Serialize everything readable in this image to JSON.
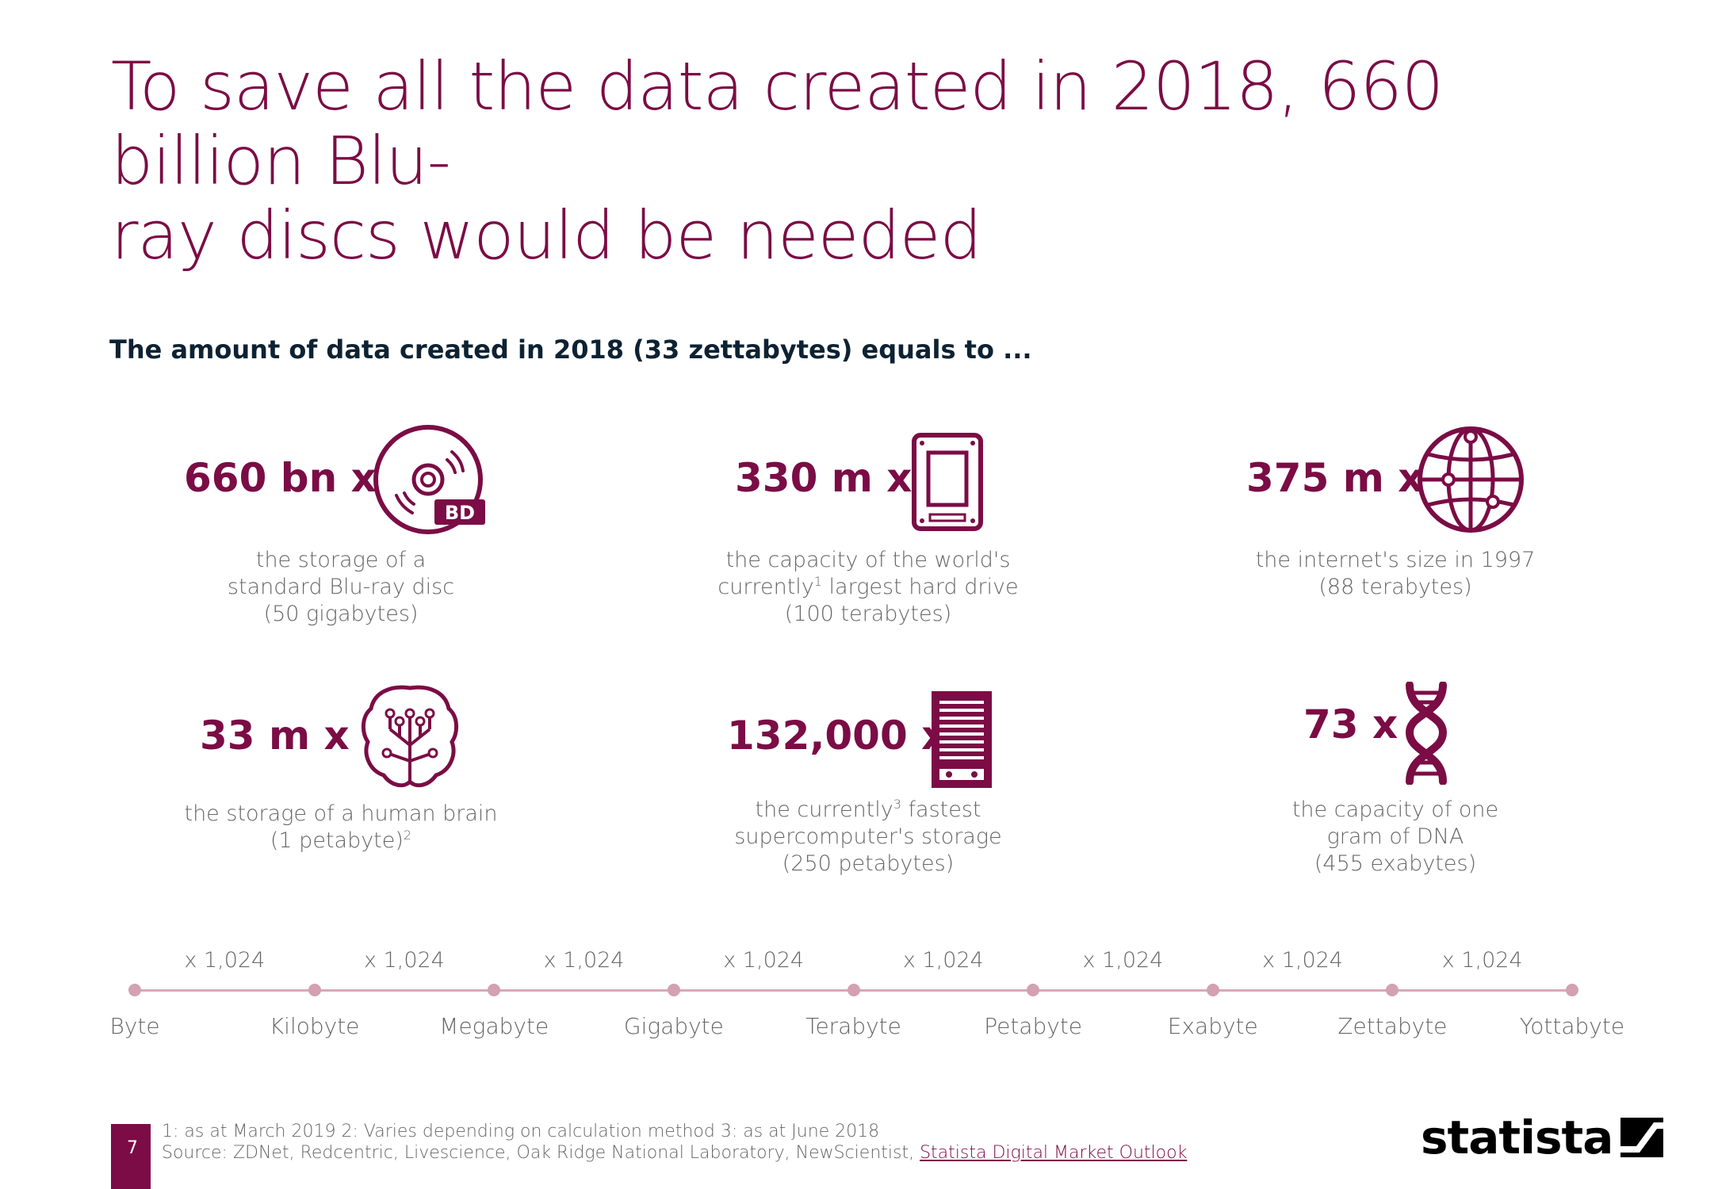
{
  "title": {
    "line1": "To save all the data created in 2018, 660 billion Blu-",
    "line2": "ray discs would be needed"
  },
  "subtitle": "The amount of data created in 2018 (33 zettabytes) equals to ...",
  "stats": [
    {
      "value": "660 bn x",
      "icon": "bluray-disc-icon",
      "icon_label": "BD",
      "desc": [
        "the storage of a",
        "standard Blu-ray disc",
        "(50 gigabytes)"
      ]
    },
    {
      "value": "330 m x",
      "icon": "hard-drive-icon",
      "desc": [
        "the capacity of the world's",
        "currently",
        "1",
        " largest hard drive",
        "(100 terabytes)"
      ]
    },
    {
      "value": "375 m x",
      "icon": "globe-network-icon",
      "desc": [
        "the internet's size in 1997",
        "(88 terabytes)"
      ]
    },
    {
      "value": "33 m x",
      "icon": "brain-icon",
      "desc": [
        "the storage of a human brain",
        "(1 petabyte)",
        "2"
      ]
    },
    {
      "value": "132,000 x",
      "icon": "server-icon",
      "desc": [
        "the currently",
        "3",
        " fastest",
        "supercomputer's storage",
        "(250 petabytes)"
      ]
    },
    {
      "value": "73 x",
      "icon": "dna-icon",
      "desc": [
        "the capacity of one",
        "gram of DNA",
        "(455 exabytes)"
      ]
    }
  ],
  "timeline": {
    "units": [
      "Byte",
      "Kilobyte",
      "Megabyte",
      "Gigabyte",
      "Terabyte",
      "Petabyte",
      "Exabyte",
      "Zettabyte",
      "Yottabyte"
    ],
    "multiplier": "x 1,024"
  },
  "footer": {
    "page": "7",
    "notes": "1: as at March 2019 2: Varies depending on calculation method 3: as at June 2018",
    "source_prefix": "Source: ZDNet, Redcentric, Livescience, Oak Ridge National Laboratory, NewScientist, ",
    "source_link": "Statista Digital Market Outlook"
  },
  "logo": "statista",
  "colors": {
    "accent": "#7b0c45",
    "timeline": "#d3a1b2",
    "text": "#666666"
  }
}
